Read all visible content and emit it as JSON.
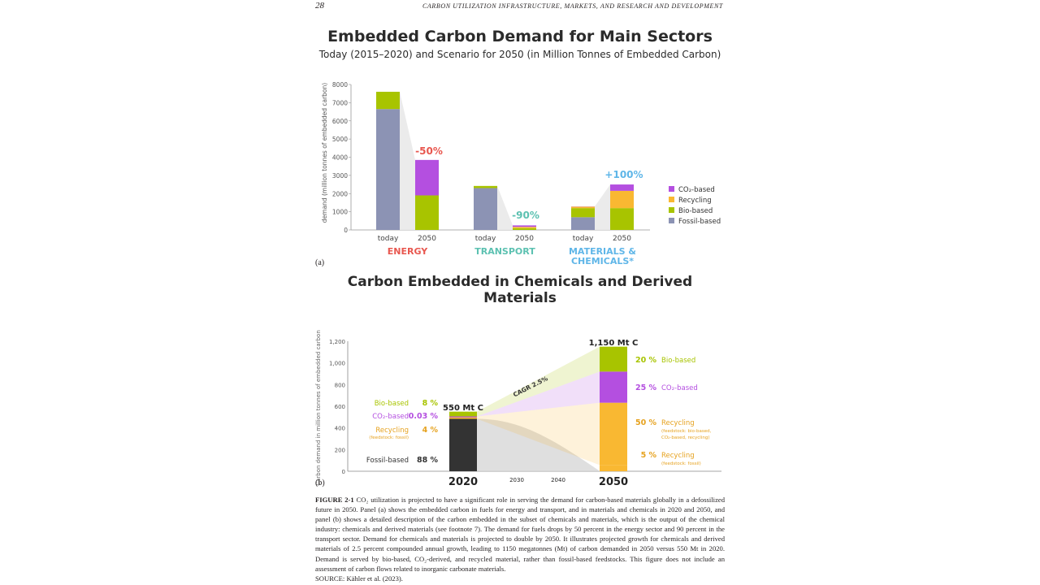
{
  "page": {
    "number": "28",
    "running_title": "CARBON UTILIZATION INFRASTRUCTURE, MARKETS, AND RESEARCH AND DEVELOPMENT"
  },
  "figure": {
    "panel_a_title": "Embedded Carbon Demand for Main Sectors",
    "panel_a_subtitle": "Today (2015–2020) and Scenario for 2050 (in Million Tonnes of Embedded Carbon)",
    "panel_b_title": "Carbon Embedded in Chemicals and Derived Materials",
    "label_a": "(a)",
    "label_b": "(b)",
    "caption_lead": "FIGURE 2-1",
    "caption_text": "CO₂ utilization is projected to have a significant role in serving the demand for carbon-based materials globally in a defossilized future in 2050. Panel (a) shows the embedded carbon in fuels for energy and transport, and in materials and chemicals in 2020 and 2050, and panel (b) shows a detailed description of the carbon embedded in the subset of chemicals and materials, which is the output of the chemical industry: chemicals and derived materials (see footnote 7). The demand for fuels drops by 50 percent in the energy sector and 90 percent in the transport sector. Demand for chemicals and materials is projected to double by 2050. It illustrates projected growth for chemicals and derived materials of 2.5 percent compounded annual growth, leading to 1150 megatonnes (Mt) of carbon demanded in 2050 versus 550 Mt in 2020. Demand is served by bio-based, CO₂-derived, and recycled material, rather than fossil-based feedstocks. This figure does not include an assessment of carbon flows related to inorganic carbonate materials.",
    "source": "SOURCE: Kähler et al. (2023)."
  },
  "colors": {
    "fossil": "#8c93b4",
    "bio": "#a8c400",
    "recycling": "#f9b832",
    "co2": "#b44fe0",
    "energy": "#e8574f",
    "transport": "#5cc1b1",
    "materials": "#5fb6e8",
    "dark_fossil": "#333333"
  },
  "chart_data": [
    {
      "type": "bar",
      "stacked": true,
      "ylabel": "demand (million tonnes of embedded carbon)",
      "ylim": [
        0,
        8000
      ],
      "yticks": [
        0,
        1000,
        2000,
        3000,
        4000,
        5000,
        6000,
        7000,
        8000
      ],
      "categories": [
        "today",
        "2050",
        "today",
        "2050",
        "today",
        "2050"
      ],
      "groups": [
        {
          "name": "ENERGY",
          "change": "-50%"
        },
        {
          "name": "TRANSPORT",
          "change": "-90%"
        },
        {
          "name": "MATERIALS & CHEMICALS*",
          "change": "+100%"
        }
      ],
      "series": [
        {
          "name": "Fossil-based",
          "values": [
            6650,
            0,
            2300,
            0,
            700,
            0
          ]
        },
        {
          "name": "Bio-based",
          "values": [
            950,
            1900,
            120,
            100,
            500,
            1200
          ]
        },
        {
          "name": "Recycling",
          "values": [
            0,
            0,
            0,
            70,
            80,
            950
          ]
        },
        {
          "name": "CO₂-based",
          "values": [
            0,
            1950,
            0,
            80,
            10,
            350
          ]
        }
      ],
      "legend": [
        "CO₂-based",
        "Recycling",
        "Bio-based",
        "Fossil-based"
      ],
      "legend_position": "right"
    },
    {
      "type": "area",
      "ylabel": "Carbon demand in million tonnes of embedded carbon",
      "ylim": [
        0,
        1200
      ],
      "yticks": [
        0,
        200,
        400,
        600,
        800,
        1000,
        1200
      ],
      "xticks": [
        "2020",
        "2030",
        "2040",
        "2050"
      ],
      "bar_2020_total": "550 Mt C",
      "bar_2050_total": "1,150 Mt C",
      "cagr": "CAGR 2.5%",
      "segments_2020": [
        {
          "name": "Fossil-based",
          "pct": "88 %",
          "value": 484
        },
        {
          "name": "Recycling",
          "sub": "(feedstock: fossil)",
          "pct": "4 %",
          "value": 22
        },
        {
          "name": "CO₂-based",
          "pct": "0.03 %",
          "value": 0.2
        },
        {
          "name": "Bio-based",
          "pct": "8 %",
          "value": 44
        }
      ],
      "segments_2050": [
        {
          "name": "Recycling",
          "sub": "(feedstock: fossil)",
          "pct": "5 %",
          "value": 57.5
        },
        {
          "name": "Recycling",
          "sub": "(feedstock: bio-based, CO₂-based, recycling)",
          "pct": "50 %",
          "value": 575
        },
        {
          "name": "CO₂-based",
          "pct": "25 %",
          "value": 287.5
        },
        {
          "name": "Bio-based",
          "pct": "20 %",
          "value": 230
        }
      ]
    }
  ]
}
